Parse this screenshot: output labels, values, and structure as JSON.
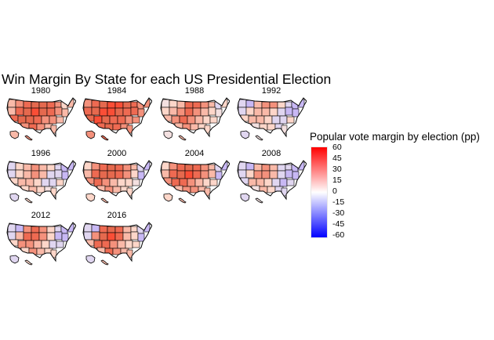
{
  "title": "Win Margin By State for each US Presidential Election",
  "panels": [
    {
      "year": "1980",
      "index": 0
    },
    {
      "year": "1984",
      "index": 1
    },
    {
      "year": "1988",
      "index": 2
    },
    {
      "year": "1992",
      "index": 3
    },
    {
      "year": "1996",
      "index": 4
    },
    {
      "year": "2000",
      "index": 5
    },
    {
      "year": "2004",
      "index": 6
    },
    {
      "year": "2008",
      "index": 7
    },
    {
      "year": "2012",
      "index": 8
    },
    {
      "year": "2016",
      "index": 9
    }
  ],
  "legend": {
    "title": "Popular vote margin by election (pp)",
    "ticks": [
      "60",
      "45",
      "30",
      "15",
      "0",
      "-15",
      "-30",
      "-45",
      "-60"
    ],
    "colors": {
      "high": "#ff0000",
      "mid": "#ffffff",
      "low": "#0000ff"
    }
  }
}
